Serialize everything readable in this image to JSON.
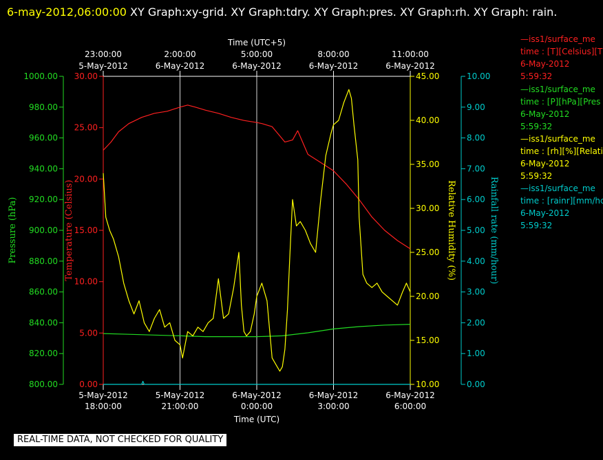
{
  "title": {
    "timestamp": "6-may-2012,06:00:00",
    "text": " XY Graph:xy-grid.  XY Graph:tdry.  XY Graph:pres.  XY Graph:rh.  XY Graph: rain."
  },
  "colors": {
    "temperature": "#ff2020",
    "pressure": "#22dd22",
    "humidity": "#ffff00",
    "rain": "#00cccc",
    "grid": "#ffffff",
    "background": "#000000"
  },
  "legend": [
    {
      "line1": "iss1/surface_me",
      "line2": "time : [T][Celsius][T",
      "date": "6-May-2012",
      "time": "5:59:32",
      "color": "#ff2020"
    },
    {
      "line1": "iss1/surface_me",
      "line2": "time : [P][hPa][Pres",
      "date": "6-May-2012",
      "time": "5:59:32",
      "color": "#22dd22"
    },
    {
      "line1": "iss1/surface_me",
      "line2": "time : [rh][%][Relati",
      "date": "6-May-2012",
      "time": "5:59:32",
      "color": "#ffff00"
    },
    {
      "line1": "iss1/surface_me",
      "line2": "time : [rainr][mm/hc",
      "date": "6-May-2012",
      "time": "5:59:32",
      "color": "#00cccc"
    }
  ],
  "qc_note": "REAL-TIME DATA, NOT CHECKED FOR QUALITY",
  "chart_data": {
    "type": "line",
    "x_label_bottom": "Time (UTC)",
    "x_label_top": "Time (UTC+5)",
    "x_range_hours": [
      0,
      12
    ],
    "x_ticks_bottom": [
      {
        "h": 0,
        "date": "5-May-2012",
        "time": "18:00:00"
      },
      {
        "h": 3,
        "date": "5-May-2012",
        "time": "21:00:00"
      },
      {
        "h": 6,
        "date": "6-May-2012",
        "time": "0:00:00"
      },
      {
        "h": 9,
        "date": "6-May-2012",
        "time": "3:00:00"
      },
      {
        "h": 12,
        "date": "6-May-2012",
        "time": "6:00:00"
      }
    ],
    "x_ticks_top": [
      {
        "h": 0,
        "time": "23:00:00",
        "date": "5-May-2012"
      },
      {
        "h": 3,
        "time": "2:00:00",
        "date": "6-May-2012"
      },
      {
        "h": 6,
        "time": "5:00:00",
        "date": "6-May-2012"
      },
      {
        "h": 9,
        "time": "8:00:00",
        "date": "6-May-2012"
      },
      {
        "h": 12,
        "time": "11:00:00",
        "date": "6-May-2012"
      }
    ],
    "axes": {
      "pressure": {
        "label": "Pressure (hPa)",
        "range": [
          800,
          1000
        ],
        "ticks": [
          "800.00",
          "820.00",
          "840.00",
          "860.00",
          "880.00",
          "900.00",
          "920.00",
          "940.00",
          "960.00",
          "980.00",
          "1000.00"
        ]
      },
      "temperature": {
        "label": "Temperature (Celsius)",
        "range": [
          0,
          30
        ],
        "ticks": [
          "0.00",
          "5.00",
          "10.00",
          "15.00",
          "20.00",
          "25.00",
          "30.00"
        ]
      },
      "humidity": {
        "label": "Relative Humidity (%)",
        "range": [
          10,
          45
        ],
        "ticks": [
          "10.00",
          "15.00",
          "20.00",
          "25.00",
          "30.00",
          "35.00",
          "40.00",
          "45.00"
        ]
      },
      "rain": {
        "label": "Rainfall rate (mm/hour)",
        "range": [
          0,
          10
        ],
        "ticks": [
          "0.00",
          "1.00",
          "2.00",
          "3.00",
          "4.00",
          "5.00",
          "6.00",
          "7.00",
          "8.00",
          "9.00",
          "10.00"
        ]
      }
    },
    "series": [
      {
        "key": "temperature",
        "x": [
          0,
          0.3,
          0.6,
          1.0,
          1.5,
          2.0,
          2.5,
          3.0,
          3.3,
          3.6,
          4.0,
          4.5,
          5.0,
          5.5,
          6.0,
          6.2,
          6.6,
          6.9,
          7.1,
          7.4,
          7.6,
          8.0,
          8.5,
          9.0,
          9.5,
          10.0,
          10.5,
          11.0,
          11.5,
          12.0
        ],
        "values": [
          22.8,
          23.6,
          24.6,
          25.4,
          26.0,
          26.4,
          26.6,
          27.0,
          27.2,
          27.0,
          26.7,
          26.4,
          26.0,
          25.7,
          25.5,
          25.4,
          25.1,
          24.2,
          23.6,
          23.8,
          24.7,
          22.4,
          21.6,
          20.8,
          19.5,
          18.0,
          16.3,
          15.0,
          14.0,
          13.2
        ]
      },
      {
        "key": "pressure",
        "x": [
          0,
          1.0,
          2.0,
          3.0,
          4.0,
          5.0,
          6.0,
          7.0,
          8.0,
          9.0,
          10.0,
          11.0,
          12.0
        ],
        "values": [
          833.0,
          832.5,
          832.0,
          831.5,
          831.0,
          831.0,
          831.0,
          831.5,
          833.5,
          836.0,
          837.5,
          838.5,
          839.0
        ]
      },
      {
        "key": "humidity",
        "x": [
          0,
          0.1,
          0.25,
          0.4,
          0.6,
          0.8,
          1.0,
          1.2,
          1.4,
          1.6,
          1.8,
          2.0,
          2.2,
          2.4,
          2.6,
          2.8,
          3.0,
          3.1,
          3.3,
          3.5,
          3.7,
          3.9,
          4.1,
          4.3,
          4.5,
          4.7,
          4.9,
          5.1,
          5.3,
          5.4,
          5.5,
          5.6,
          5.75,
          5.9,
          6.0,
          6.2,
          6.4,
          6.6,
          6.8,
          6.9,
          7.0,
          7.1,
          7.2,
          7.3,
          7.4,
          7.55,
          7.7,
          7.9,
          8.1,
          8.3,
          8.5,
          8.7,
          8.9,
          9.0,
          9.2,
          9.4,
          9.6,
          9.7,
          9.8,
          9.95,
          10.0,
          10.15,
          10.3,
          10.5,
          10.7,
          10.9,
          11.1,
          11.3,
          11.5,
          11.7,
          11.85,
          12.0
        ],
        "values": [
          34.0,
          29.0,
          27.5,
          26.5,
          24.5,
          21.5,
          19.5,
          18.0,
          19.5,
          17.0,
          16.0,
          17.5,
          18.5,
          16.5,
          17.0,
          15.0,
          14.5,
          13.0,
          16.0,
          15.5,
          16.5,
          16.0,
          17.0,
          17.5,
          22.0,
          17.5,
          18.0,
          21.0,
          25.0,
          19.0,
          16.0,
          15.5,
          16.0,
          18.0,
          20.0,
          21.5,
          19.5,
          13.0,
          12.0,
          11.5,
          12.0,
          14.0,
          18.5,
          25.0,
          31.0,
          28.0,
          28.5,
          27.5,
          26.0,
          25.0,
          31.0,
          36.0,
          38.5,
          39.5,
          40.0,
          42.0,
          43.5,
          42.5,
          39.5,
          35.5,
          29.0,
          22.5,
          21.5,
          21.0,
          21.5,
          20.5,
          20.0,
          19.5,
          19.0,
          20.5,
          21.5,
          20.5
        ]
      },
      {
        "key": "rain",
        "x": [
          0,
          1.5,
          1.55,
          1.6,
          12.0
        ],
        "values": [
          0.0,
          0.0,
          0.1,
          0.0,
          0.0
        ]
      }
    ]
  }
}
